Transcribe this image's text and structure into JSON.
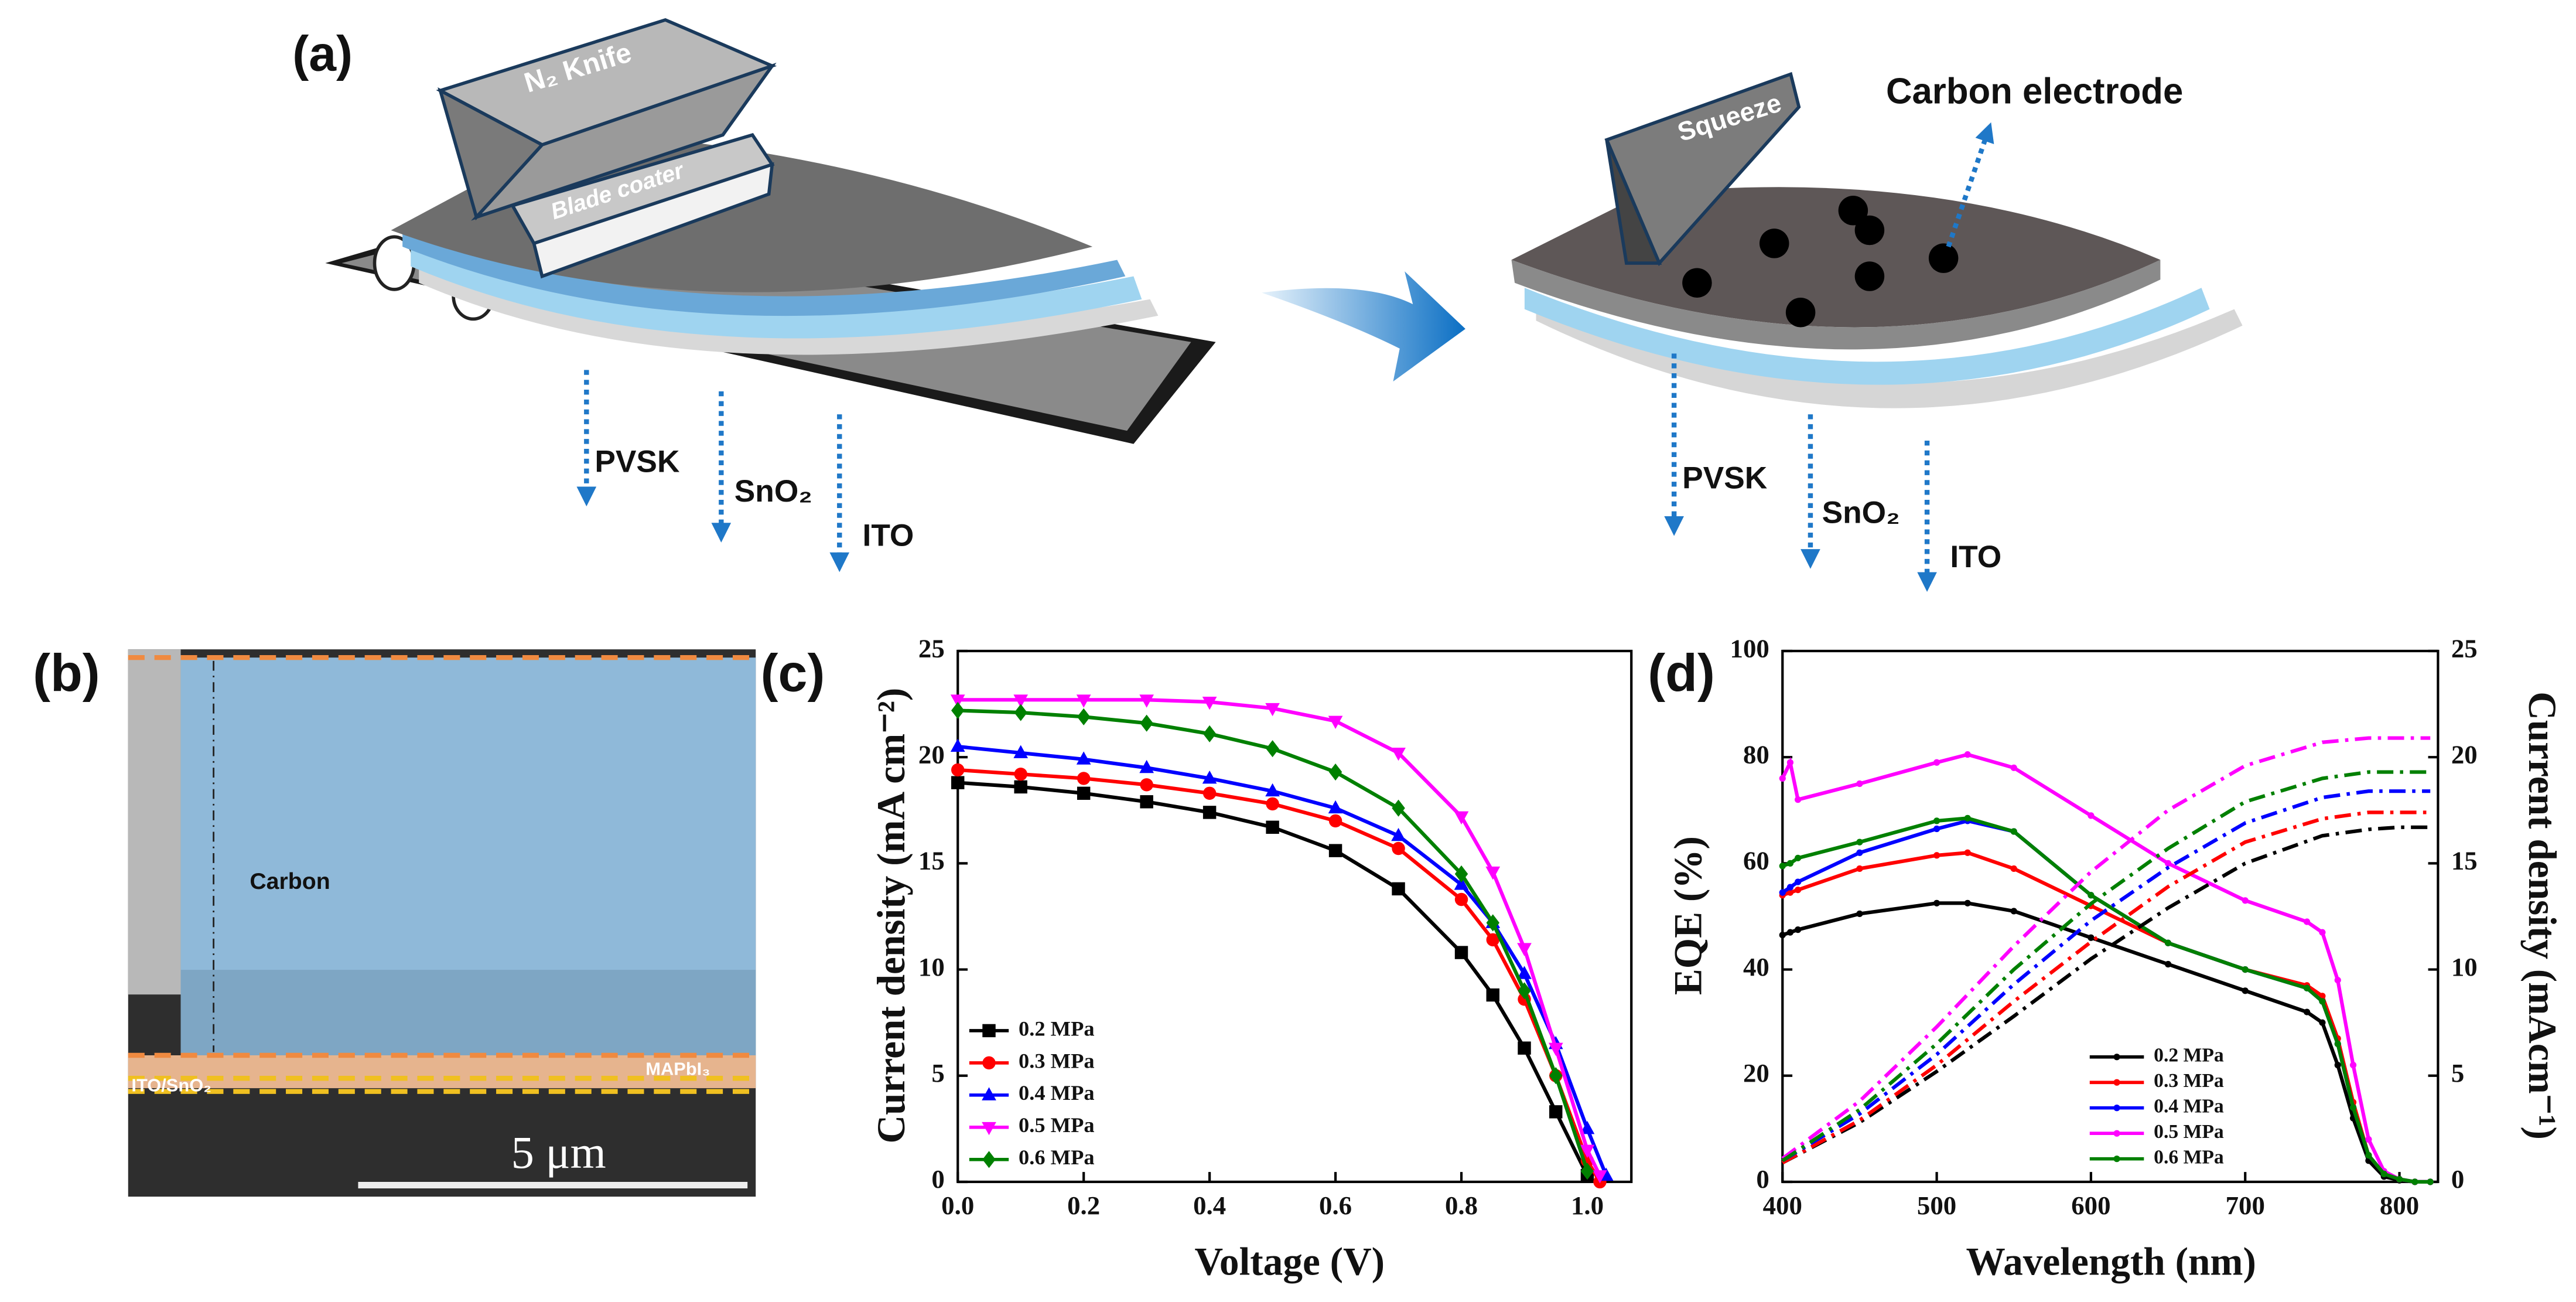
{
  "panel_a": {
    "label": "(a)",
    "n2_knife": "N₂ Knife",
    "blade_coater": "Blade coater",
    "left_layers": [
      "PVSK",
      "SnO₂",
      "ITO"
    ],
    "squeeze": "Squeeze",
    "carbon_electrode": "Carbon electrode",
    "right_layers": [
      "PVSK",
      "SnO₂",
      "ITO"
    ]
  },
  "panel_b": {
    "label": "(b)",
    "carbon": "Carbon",
    "mapbi3": "MAPbI₃",
    "ito_sno2": "ITO/SnO₂",
    "scale_bar": "5 μm"
  },
  "chart_data": [
    {
      "type": "line",
      "panel_label": "(c)",
      "x_label": "Voltage (V)",
      "y_label": "Current density (mA cm⁻²)",
      "xlim": [
        0,
        1.07
      ],
      "xticks": [
        {
          "value": 0,
          "label": "0.0"
        },
        0.2,
        0.4,
        0.6,
        0.8,
        {
          "value": 1,
          "label": "1.0"
        }
      ],
      "ylim": [
        0,
        25
      ],
      "yticks": [
        0,
        5,
        10,
        15,
        20,
        25
      ],
      "legend": "lower left",
      "series": [
        {
          "name": "0.2 MPa",
          "color": "#000000",
          "marker": "square",
          "x": [
            0,
            0.1,
            0.2,
            0.3,
            0.4,
            0.5,
            0.6,
            0.7,
            0.8,
            0.85,
            0.9,
            0.95,
            1.0
          ],
          "values": [
            18.8,
            18.6,
            18.3,
            17.9,
            17.4,
            16.7,
            15.6,
            13.8,
            10.8,
            8.8,
            6.3,
            3.3,
            0.3
          ]
        },
        {
          "name": "0.3 MPa",
          "color": "#ff0000",
          "marker": "circle",
          "x": [
            0,
            0.1,
            0.2,
            0.3,
            0.4,
            0.5,
            0.6,
            0.7,
            0.8,
            0.85,
            0.9,
            0.95,
            1.0,
            1.02
          ],
          "values": [
            19.4,
            19.2,
            19.0,
            18.7,
            18.3,
            17.8,
            17.0,
            15.7,
            13.3,
            11.4,
            8.6,
            5.0,
            1.0,
            0
          ]
        },
        {
          "name": "0.4 MPa",
          "color": "#0000ff",
          "marker": "triangle",
          "x": [
            0,
            0.1,
            0.2,
            0.3,
            0.4,
            0.5,
            0.6,
            0.7,
            0.8,
            0.85,
            0.9,
            0.95,
            1.0,
            1.03
          ],
          "values": [
            20.5,
            20.2,
            19.9,
            19.5,
            19.0,
            18.4,
            17.6,
            16.3,
            14.0,
            12.2,
            9.8,
            6.5,
            2.5,
            0.3
          ]
        },
        {
          "name": "0.5 MPa",
          "color": "#ff00ff",
          "marker": "triangle-down",
          "x": [
            0,
            0.1,
            0.2,
            0.3,
            0.4,
            0.5,
            0.6,
            0.7,
            0.8,
            0.85,
            0.9,
            0.95,
            1.0,
            1.02
          ],
          "values": [
            22.7,
            22.7,
            22.7,
            22.7,
            22.6,
            22.3,
            21.7,
            20.2,
            17.2,
            14.6,
            11.0,
            6.3,
            1.5,
            0.3
          ]
        },
        {
          "name": "0.6 MPa",
          "color": "#008000",
          "marker": "diamond",
          "x": [
            0,
            0.1,
            0.2,
            0.3,
            0.4,
            0.5,
            0.6,
            0.7,
            0.8,
            0.85,
            0.9,
            0.95,
            1.0
          ],
          "values": [
            22.2,
            22.1,
            21.9,
            21.6,
            21.1,
            20.4,
            19.3,
            17.6,
            14.5,
            12.2,
            9.0,
            5.0,
            0.5
          ]
        }
      ]
    },
    {
      "type": "line",
      "panel_label": "(d)",
      "x_label": "Wavelength (nm)",
      "y_label": "EQE (%)",
      "y2_label": "Current density (mAcm⁻¹)",
      "xlim": [
        400,
        825
      ],
      "xticks": [
        400,
        500,
        600,
        700,
        800
      ],
      "ylim": [
        0,
        100
      ],
      "yticks": [
        0,
        20,
        40,
        60,
        80,
        100
      ],
      "y2lim": [
        0,
        25
      ],
      "y2ticks": [
        0,
        5,
        10,
        15,
        20,
        25
      ],
      "legend": "lower center",
      "series": [
        {
          "name": "0.2 MPa",
          "color": "#000000",
          "marker": "dot",
          "x": [
            400,
            405,
            410,
            450,
            500,
            520,
            550,
            600,
            650,
            700,
            740,
            750,
            760,
            770,
            780,
            790,
            800,
            810,
            820
          ],
          "values": [
            46.5,
            47,
            47.5,
            50.5,
            52.5,
            52.5,
            51,
            46,
            41,
            36,
            32,
            30,
            22,
            12,
            4,
            1,
            0.3,
            0,
            0
          ]
        },
        {
          "name": "0.3 MPa",
          "color": "#ff0000",
          "marker": "dot",
          "x": [
            400,
            405,
            410,
            450,
            500,
            520,
            550,
            600,
            650,
            700,
            740,
            750,
            760,
            770,
            780,
            790,
            800,
            810,
            820
          ],
          "values": [
            54,
            54.5,
            55,
            59,
            61.5,
            62,
            59,
            52,
            45,
            40,
            37,
            35,
            27,
            15,
            5,
            1.5,
            0.5,
            0,
            0
          ]
        },
        {
          "name": "0.4 MPa",
          "color": "#0000ff",
          "marker": "dot",
          "x": [
            400,
            405,
            410,
            450,
            500,
            520,
            550,
            600,
            650,
            700,
            740,
            750,
            760,
            770,
            780,
            790,
            800,
            810,
            820
          ],
          "values": [
            54.5,
            55.5,
            56.5,
            62,
            66.5,
            68,
            66,
            54,
            45,
            40,
            36.5,
            34,
            26,
            14,
            5,
            1.5,
            0.5,
            0,
            0
          ]
        },
        {
          "name": "0.5 MPa",
          "color": "#ff00ff",
          "marker": "dot",
          "x": [
            400,
            405,
            410,
            450,
            500,
            520,
            550,
            600,
            650,
            700,
            740,
            750,
            760,
            770,
            780,
            790,
            800,
            810,
            820
          ],
          "values": [
            76,
            79,
            72,
            75,
            79,
            80.5,
            78,
            69,
            60,
            53,
            49,
            47,
            38,
            22,
            8,
            2,
            0.5,
            0,
            0
          ]
        },
        {
          "name": "0.6 MPa",
          "color": "#008000",
          "marker": "dot",
          "x": [
            400,
            405,
            410,
            450,
            500,
            520,
            550,
            600,
            650,
            700,
            740,
            750,
            760,
            770,
            780,
            790,
            800,
            810,
            820
          ],
          "values": [
            59.5,
            60,
            61,
            64,
            68,
            68.5,
            66,
            54,
            45,
            40,
            36.5,
            34,
            26,
            14,
            5,
            1.5,
            0.5,
            0,
            0
          ]
        },
        {
          "color": "#000000",
          "axis": "y2",
          "linestyle": "dashdot",
          "x": [
            400,
            450,
            500,
            550,
            600,
            650,
            700,
            750,
            780,
            800,
            820
          ],
          "values": [
            0.9,
            2.8,
            5.2,
            7.8,
            10.5,
            12.9,
            15.0,
            16.3,
            16.6,
            16.7,
            16.7
          ]
        },
        {
          "color": "#ff0000",
          "axis": "y2",
          "linestyle": "dashdot",
          "x": [
            400,
            450,
            500,
            550,
            600,
            650,
            700,
            750,
            780,
            800,
            820
          ],
          "values": [
            0.9,
            2.9,
            5.5,
            8.5,
            11.3,
            13.9,
            16.0,
            17.1,
            17.4,
            17.4,
            17.4
          ]
        },
        {
          "color": "#0000ff",
          "axis": "y2",
          "linestyle": "dashdot",
          "x": [
            400,
            450,
            500,
            550,
            600,
            650,
            700,
            750,
            780,
            800,
            820
          ],
          "values": [
            1.0,
            3.2,
            6.0,
            9.3,
            12.3,
            14.8,
            16.9,
            18.1,
            18.4,
            18.4,
            18.4
          ]
        },
        {
          "color": "#ff00ff",
          "axis": "y2",
          "linestyle": "dashdot",
          "x": [
            400,
            450,
            500,
            550,
            600,
            650,
            700,
            750,
            780,
            800,
            820
          ],
          "values": [
            1.1,
            3.8,
            7.3,
            11.1,
            14.6,
            17.5,
            19.6,
            20.7,
            20.9,
            20.9,
            20.9
          ]
        },
        {
          "color": "#008000",
          "axis": "y2",
          "linestyle": "dashdot",
          "x": [
            400,
            450,
            500,
            550,
            600,
            650,
            700,
            750,
            780,
            800,
            820
          ],
          "values": [
            1.0,
            3.4,
            6.5,
            10.0,
            13.1,
            15.7,
            17.9,
            19.0,
            19.3,
            19.3,
            19.3
          ]
        }
      ]
    }
  ]
}
